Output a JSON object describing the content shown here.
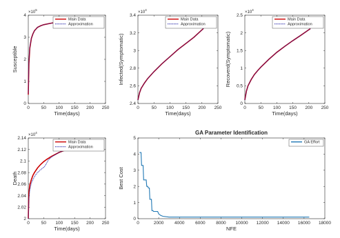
{
  "chart_data": [
    {
      "type": "line",
      "title": "",
      "xlabel": "Time(days)",
      "ylabel": "Susceptible",
      "y_exponent": "5",
      "xlim": [
        0,
        250
      ],
      "ylim": [
        0,
        4
      ],
      "x_ticks": [
        "0",
        "50",
        "100",
        "150",
        "200",
        "250"
      ],
      "y_ticks": [
        "0",
        "1",
        "2",
        "3",
        "4"
      ],
      "grid": false,
      "legend_position": "top-right",
      "series": [
        {
          "name": "Main Data",
          "color": "#cc0000",
          "style": "solid",
          "x": [
            0,
            2,
            5,
            10,
            15,
            20,
            30,
            40,
            50,
            75,
            100,
            150,
            205
          ],
          "y": [
            0.4,
            1.8,
            2.5,
            2.95,
            3.15,
            3.3,
            3.45,
            3.52,
            3.57,
            3.64,
            3.69,
            3.74,
            3.78
          ]
        },
        {
          "name": "Approximation",
          "color": "#1a1aa6",
          "style": "dotted",
          "x": [
            0,
            2,
            5,
            10,
            15,
            20,
            30,
            40,
            50,
            75,
            100,
            150,
            205
          ],
          "y": [
            0.45,
            1.85,
            2.55,
            2.95,
            3.15,
            3.3,
            3.45,
            3.52,
            3.57,
            3.64,
            3.69,
            3.74,
            3.77
          ]
        }
      ]
    },
    {
      "type": "line",
      "title": "",
      "xlabel": "Time(days)",
      "ylabel": "Infected(Symptomatic)",
      "y_exponent": "4",
      "xlim": [
        0,
        250
      ],
      "ylim": [
        2.4,
        3.4
      ],
      "x_ticks": [
        "0",
        "50",
        "100",
        "150",
        "200",
        "250"
      ],
      "y_ticks": [
        "2.4",
        "2.6",
        "2.8",
        "3",
        "3.2",
        "3.4"
      ],
      "grid": false,
      "legend_position": "top-right",
      "series": [
        {
          "name": "Main Data",
          "color": "#cc0000",
          "style": "solid",
          "x": [
            0,
            5,
            10,
            20,
            30,
            40,
            50,
            75,
            100,
            125,
            150,
            175,
            205
          ],
          "y": [
            2.44,
            2.52,
            2.57,
            2.63,
            2.68,
            2.72,
            2.76,
            2.85,
            2.93,
            3.01,
            3.08,
            3.15,
            3.25
          ]
        },
        {
          "name": "Approximation",
          "color": "#1a1aa6",
          "style": "dotted",
          "x": [
            0,
            5,
            10,
            20,
            30,
            40,
            50,
            75,
            100,
            125,
            150,
            175,
            205
          ],
          "y": [
            2.44,
            2.52,
            2.57,
            2.63,
            2.68,
            2.72,
            2.76,
            2.85,
            2.93,
            3.01,
            3.08,
            3.15,
            3.25
          ]
        }
      ]
    },
    {
      "type": "line",
      "title": "",
      "xlabel": "Time(days)",
      "ylabel": "Recoverd(Symptomatic)",
      "y_exponent": "4",
      "xlim": [
        0,
        250
      ],
      "ylim": [
        0,
        2.5
      ],
      "x_ticks": [
        "0",
        "50",
        "100",
        "150",
        "200",
        "250"
      ],
      "y_ticks": [
        "0",
        "0.5",
        "1",
        "1.5",
        "2",
        "2.5"
      ],
      "grid": false,
      "legend_position": "top-right",
      "series": [
        {
          "name": "Main Data",
          "color": "#cc0000",
          "style": "solid",
          "x": [
            0,
            5,
            10,
            20,
            30,
            40,
            50,
            75,
            100,
            125,
            150,
            175,
            205
          ],
          "y": [
            0.1,
            0.35,
            0.5,
            0.68,
            0.82,
            0.93,
            1.03,
            1.25,
            1.45,
            1.62,
            1.78,
            1.93,
            2.12
          ]
        },
        {
          "name": "Approximation",
          "color": "#1a1aa6",
          "style": "dotted",
          "x": [
            0,
            5,
            10,
            20,
            30,
            40,
            50,
            75,
            100,
            125,
            150,
            175,
            205
          ],
          "y": [
            0.1,
            0.35,
            0.5,
            0.68,
            0.82,
            0.93,
            1.03,
            1.25,
            1.45,
            1.62,
            1.78,
            1.93,
            2.12
          ]
        }
      ]
    },
    {
      "type": "line",
      "title": "",
      "xlabel": "Time(days)",
      "ylabel": "Death",
      "y_exponent": "4",
      "xlim": [
        0,
        250
      ],
      "ylim": [
        2.0,
        2.14
      ],
      "x_ticks": [
        "0",
        "50",
        "100",
        "150",
        "200",
        "250"
      ],
      "y_ticks": [
        "2",
        "2.02",
        "2.04",
        "2.06",
        "2.08",
        "2.1",
        "2.12",
        "2.14"
      ],
      "grid": false,
      "legend_position": "top-right",
      "series": [
        {
          "name": "Main Data",
          "color": "#cc0000",
          "style": "solid",
          "x": [
            0,
            2,
            5,
            10,
            15,
            20,
            30,
            40,
            50,
            60,
            75,
            100,
            125,
            150,
            175,
            205
          ],
          "y": [
            2.0,
            2.045,
            2.058,
            2.068,
            2.075,
            2.08,
            2.088,
            2.094,
            2.099,
            2.103,
            2.108,
            2.115,
            2.12,
            2.124,
            2.127,
            2.131
          ]
        },
        {
          "name": "Approximation",
          "color": "#1a1aa6",
          "style": "dotted",
          "x": [
            0,
            2,
            5,
            10,
            15,
            20,
            30,
            40,
            50,
            55,
            60,
            65,
            75,
            100,
            125,
            150,
            175,
            205
          ],
          "y": [
            2.0,
            2.035,
            2.05,
            2.062,
            2.068,
            2.073,
            2.08,
            2.085,
            2.089,
            2.092,
            2.097,
            2.102,
            2.107,
            2.115,
            2.12,
            2.124,
            2.127,
            2.131
          ]
        }
      ]
    },
    {
      "type": "line",
      "title": "GA Parameter Identification",
      "xlabel": "NFE",
      "ylabel": "Best Cost",
      "y_exponent": "",
      "xlim": [
        0,
        18000
      ],
      "ylim": [
        0,
        5
      ],
      "x_ticks": [
        "0",
        "2000",
        "4000",
        "6000",
        "8000",
        "10000",
        "12000",
        "14000",
        "16000",
        "18000"
      ],
      "y_ticks": [
        "0",
        "1",
        "2",
        "3",
        "4",
        "5"
      ],
      "grid": false,
      "legend_position": "top-right",
      "series": [
        {
          "name": "GA Effort",
          "color": "#1f77b4",
          "style": "solid",
          "x": [
            150,
            300,
            350,
            500,
            550,
            800,
            850,
            950,
            1000,
            1100,
            1150,
            1300,
            1350,
            1450,
            1500,
            1900,
            2000,
            2200,
            2400,
            3000,
            4000,
            6000,
            8000,
            10000,
            12000,
            14000,
            16500
          ],
          "y": [
            4.1,
            4.1,
            3.3,
            3.3,
            2.4,
            2.4,
            2.0,
            2.0,
            1.9,
            1.9,
            1.2,
            1.2,
            0.5,
            0.5,
            0.45,
            0.45,
            0.3,
            0.2,
            0.15,
            0.1,
            0.1,
            0.1,
            0.1,
            0.1,
            0.1,
            0.1,
            0.1
          ]
        }
      ]
    }
  ]
}
